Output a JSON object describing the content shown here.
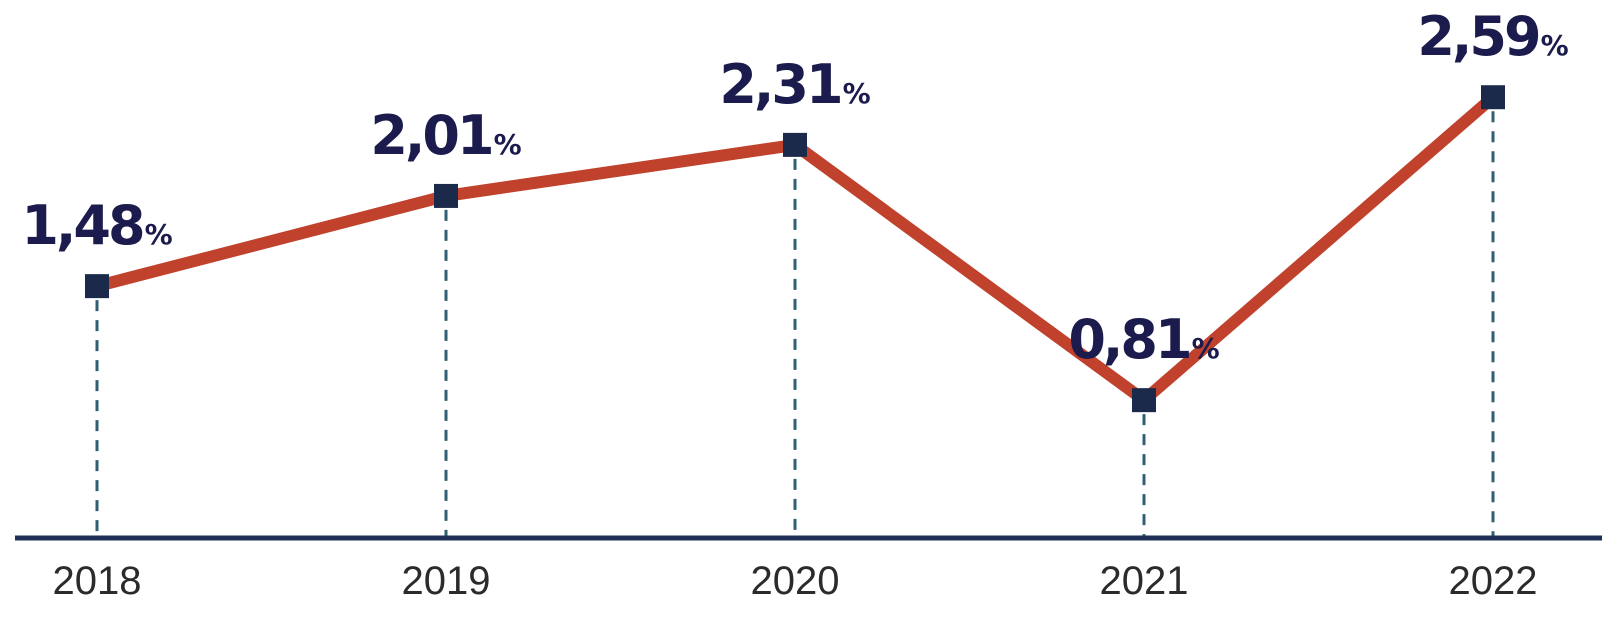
{
  "chart_data": {
    "type": "line",
    "x": [
      "2018",
      "2019",
      "2020",
      "2021",
      "2022"
    ],
    "values": [
      1.48,
      2.01,
      2.31,
      0.81,
      2.59
    ],
    "value_labels": [
      "1,48",
      "2,01",
      "2,31",
      "0,81",
      "2,59"
    ],
    "value_unit": "%",
    "ylim": [
      0,
      2.75
    ],
    "title": "",
    "xlabel": "",
    "ylabel": "",
    "grid": false,
    "legend": "none",
    "colors": {
      "line": "#c0412c",
      "marker": "#1b2a4a",
      "label": "#1b1b4d",
      "axis": "#1f3057",
      "guide": "#2f5f70"
    }
  }
}
